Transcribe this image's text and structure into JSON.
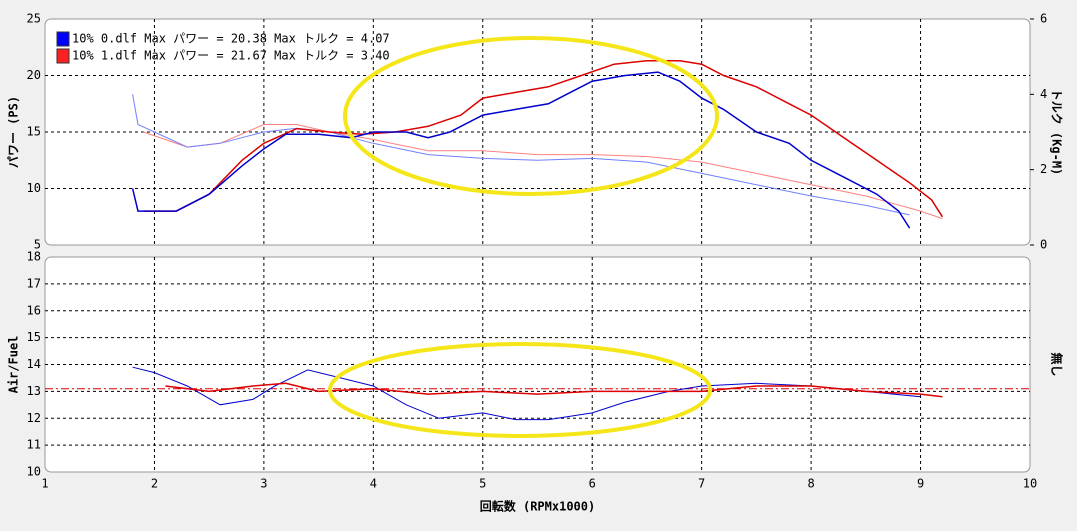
{
  "chart_data": [
    {
      "type": "line",
      "ylabel": "パワー (PS)",
      "y2label": "トルク (Kg-M)",
      "legend": [
        {
          "label": "10% 0.dlf Max パワー = 20.38  Max トルク = 4.07",
          "color": "#0000ff"
        },
        {
          "label": "10% 1.dlf Max パワー = 21.67  Max トルク = 3.40",
          "color": "#ff2020"
        }
      ],
      "xlim": [
        1,
        10
      ],
      "xticks": [
        1,
        2,
        3,
        4,
        5,
        6,
        7,
        8,
        9,
        10
      ],
      "ylim": [
        5,
        25
      ],
      "yticks": [
        5,
        10,
        15,
        20,
        25
      ],
      "y2lim": [
        0,
        6
      ],
      "y2ticks": [
        0,
        2,
        4,
        6
      ],
      "grid": true,
      "series": [
        {
          "color": "#ff8080",
          "axis": "y2",
          "width": 1,
          "x": [
            1.9,
            2.3,
            2.6,
            3.0,
            3.3,
            3.6,
            4.0,
            4.5,
            5.0,
            5.5,
            6.0,
            6.5,
            7.0,
            7.5,
            8.0,
            8.5,
            9.0,
            9.2
          ],
          "values": [
            3.0,
            2.6,
            2.7,
            3.2,
            3.2,
            3.0,
            2.8,
            2.5,
            2.5,
            2.4,
            2.4,
            2.35,
            2.2,
            1.9,
            1.6,
            1.3,
            0.9,
            0.7
          ]
        },
        {
          "color": "#7080ff",
          "axis": "y2",
          "width": 1,
          "x": [
            1.8,
            1.85,
            2.0,
            2.3,
            2.6,
            3.0,
            3.3,
            3.6,
            4.0,
            4.5,
            5.0,
            5.5,
            6.0,
            6.5,
            7.0,
            7.5,
            8.0,
            8.5,
            8.9
          ],
          "values": [
            4.0,
            3.2,
            3.0,
            2.6,
            2.7,
            3.0,
            3.1,
            3.0,
            2.7,
            2.4,
            2.3,
            2.25,
            2.3,
            2.2,
            1.9,
            1.6,
            1.3,
            1.05,
            0.8
          ]
        },
        {
          "color": "#dd0000",
          "axis": "y",
          "width": 1.5,
          "x": [
            1.9,
            2.2,
            2.5,
            2.8,
            3.0,
            3.3,
            3.6,
            3.9,
            4.2,
            4.5,
            4.8,
            5.0,
            5.3,
            5.6,
            5.9,
            6.2,
            6.5,
            6.8,
            7.0,
            7.2,
            7.5,
            7.8,
            8.0,
            8.3,
            8.6,
            8.9,
            9.1,
            9.2
          ],
          "values": [
            8,
            8,
            9.5,
            12.5,
            14,
            15.3,
            15,
            14.8,
            15,
            15.5,
            16.5,
            18,
            18.5,
            19,
            20,
            21,
            21.3,
            21.3,
            21,
            20,
            19,
            17.5,
            16.5,
            14.5,
            12.5,
            10.5,
            9,
            7.5
          ]
        },
        {
          "color": "#0000cc",
          "axis": "y",
          "width": 1.5,
          "x": [
            1.8,
            1.85,
            2.2,
            2.5,
            2.8,
            3.0,
            3.2,
            3.5,
            3.8,
            4.0,
            4.3,
            4.5,
            4.7,
            5.0,
            5.3,
            5.6,
            5.8,
            6.0,
            6.3,
            6.6,
            6.8,
            7.0,
            7.2,
            7.5,
            7.8,
            8.0,
            8.3,
            8.6,
            8.8,
            8.9
          ],
          "values": [
            10,
            8,
            8,
            9.5,
            12,
            13.5,
            14.8,
            14.8,
            14.5,
            15,
            15,
            14.5,
            15,
            16.5,
            17,
            17.5,
            18.5,
            19.5,
            20,
            20.3,
            19.5,
            18,
            17,
            15,
            14,
            12.5,
            11,
            9.5,
            8,
            6.5
          ]
        }
      ]
    },
    {
      "type": "line",
      "ylabel": "Air/Fuel",
      "y2label": "無し",
      "xlabel": "回転数 (RPMx1000)",
      "xlim": [
        1,
        10
      ],
      "xticks": [
        1,
        2,
        3,
        4,
        5,
        6,
        7,
        8,
        9,
        10
      ],
      "ylim": [
        10,
        18
      ],
      "yticks": [
        10,
        11,
        12,
        13,
        14,
        15,
        16,
        17,
        18
      ],
      "grid": true,
      "reference_line": 13.1,
      "reference_color": "#dd0000",
      "series": [
        {
          "color": "#0000cc",
          "axis": "y",
          "width": 1,
          "x": [
            1.8,
            2.0,
            2.3,
            2.6,
            2.9,
            3.1,
            3.4,
            3.7,
            4.0,
            4.3,
            4.6,
            5.0,
            5.3,
            5.6,
            6.0,
            6.3,
            6.7,
            7.0,
            7.5,
            8.0,
            8.5,
            9.0
          ],
          "values": [
            13.9,
            13.7,
            13.2,
            12.5,
            12.7,
            13.2,
            13.8,
            13.5,
            13.2,
            12.5,
            12.0,
            12.2,
            11.95,
            11.95,
            12.2,
            12.6,
            13.0,
            13.2,
            13.3,
            13.2,
            13.0,
            12.8
          ]
        },
        {
          "color": "#dd0000",
          "axis": "y",
          "width": 1.5,
          "x": [
            2.1,
            2.5,
            2.9,
            3.2,
            3.5,
            4.0,
            4.5,
            5.0,
            5.5,
            6.0,
            6.5,
            7.0,
            7.5,
            8.0,
            8.5,
            9.0,
            9.2
          ],
          "values": [
            13.2,
            13.0,
            13.2,
            13.3,
            13.0,
            13.1,
            12.9,
            13.0,
            12.9,
            13.0,
            13.0,
            13.0,
            13.2,
            13.2,
            13.0,
            12.9,
            12.8
          ]
        }
      ]
    }
  ]
}
